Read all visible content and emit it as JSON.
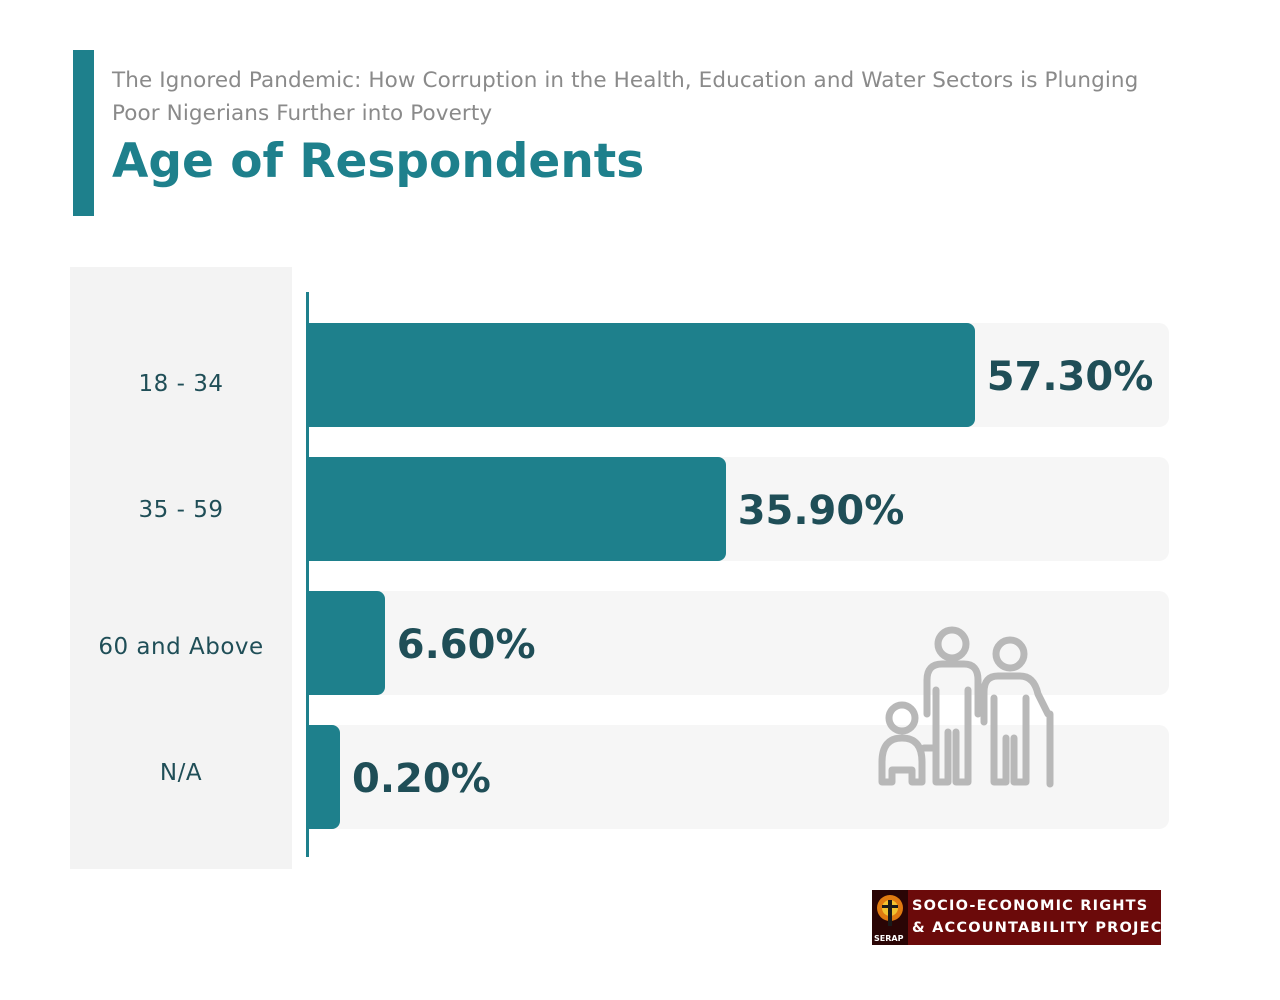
{
  "header": {
    "subtitle": "The Ignored Pandemic: How Corruption in the Health, Education and Water Sectors is Plunging Poor Nigerians Further into Poverty",
    "title": "Age of Respondents"
  },
  "colors": {
    "accent": "#1e808c",
    "text_dark": "#1f4e57",
    "track": "#f6f6f6",
    "panel": "#f3f3f3",
    "logo_bg": "#6b0a0a"
  },
  "chart_data": {
    "type": "bar",
    "orientation": "horizontal",
    "title": "Age of Respondents",
    "categories": [
      "18 - 34",
      "35 - 59",
      "60 and Above",
      "N/A"
    ],
    "values": [
      57.3,
      35.9,
      6.6,
      0.2
    ],
    "value_labels": [
      "57.30%",
      "35.90%",
      "6.60%",
      "0.20%"
    ],
    "xlim": [
      0,
      74
    ],
    "grid": false,
    "legend": "none"
  },
  "decoration": {
    "icon": "family-icon"
  },
  "logo": {
    "line1": "SOCIO-ECONOMIC RIGHTS",
    "line2": "& ACCOUNTABILITY PROJECT",
    "abbr": "SERAP"
  }
}
